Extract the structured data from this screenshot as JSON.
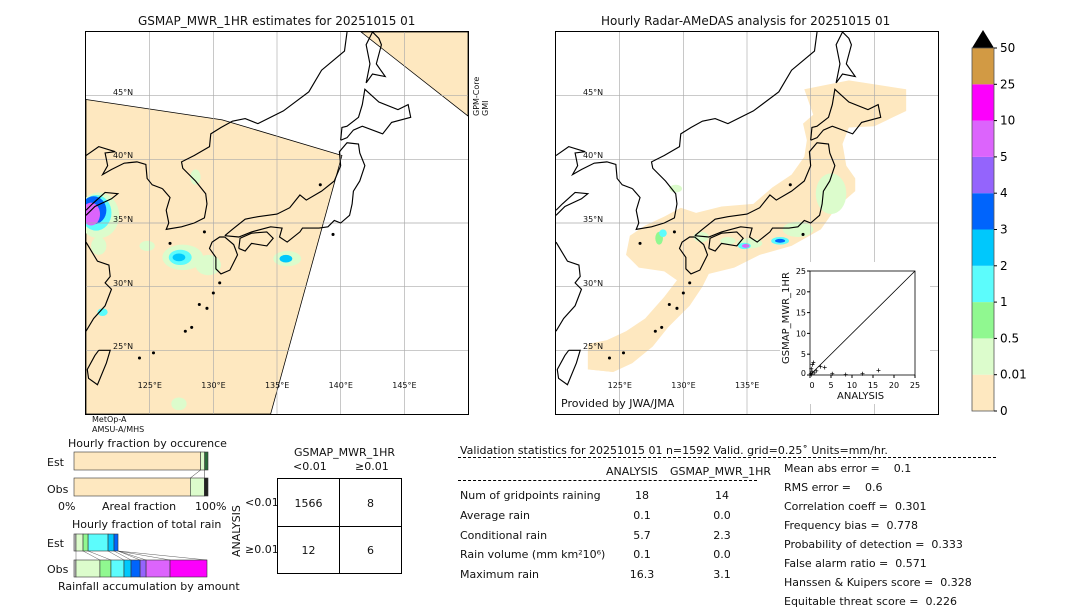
{
  "colors": {
    "scale": [
      "#fee8c0",
      "#dcfccc",
      "#90f890",
      "#5cfcfc",
      "#00c8fc",
      "#0064fc",
      "#9464fc",
      "#dc64fc",
      "#fc00fc",
      "#d29a44"
    ],
    "swath": "#fee8c0",
    "extend": "#000000"
  },
  "left_map": {
    "title": "GSMAP_MWR_1HR estimates for 20251015 01",
    "sensor_top_right": [
      "GPM-Core",
      "GMI"
    ],
    "sensor_bottom_left": [
      "MetOp-A",
      "AMSU-A/MHS"
    ]
  },
  "right_map": {
    "title": "Hourly Radar-AMeDAS analysis for 20251015 01",
    "credit": "Provided by JWA/JMA"
  },
  "map_axes": {
    "lat_labels": [
      "45°N",
      "40°N",
      "35°N",
      "30°N",
      "25°N"
    ],
    "lon_labels": [
      "125°E",
      "130°E",
      "135°E",
      "140°E",
      "145°E"
    ],
    "lat_values": [
      45,
      40,
      35,
      30,
      25
    ],
    "lon_values": [
      125,
      130,
      135,
      140,
      145
    ],
    "lon_range": [
      120,
      150
    ],
    "lat_range": [
      20,
      50
    ]
  },
  "colorbar": {
    "tick_labels": [
      "0",
      "0.01",
      "0.5",
      "1",
      "2",
      "3",
      "4",
      "5",
      "10",
      "25",
      "50"
    ],
    "units": "mm/hr"
  },
  "scatter": {
    "xlabel": "ANALYSIS",
    "ylabel": "GSMAP_MWR_1HR",
    "ticks": [
      "0",
      "5",
      "10",
      "15",
      "20",
      "25"
    ],
    "range": [
      0,
      25
    ]
  },
  "occurrence": {
    "title": "Hourly fraction by occurence",
    "rows": [
      "Est",
      "Obs"
    ],
    "xlabel_left": "0%",
    "xlabel_mid": "Areal fraction",
    "xlabel_right": "100%"
  },
  "total_rain": {
    "title": "Hourly fraction of total rain",
    "rows": [
      "Est",
      "Obs"
    ],
    "xlabel": "Rainfall accumulation by amount"
  },
  "contingency": {
    "col_header": "GSMAP_MWR_1HR",
    "col_labels": [
      "<0.01",
      "≥0.01"
    ],
    "row_header": "ANALYSIS",
    "row_labels": [
      "<0.01",
      "≥0.01"
    ],
    "cells": [
      [
        "1566",
        "8"
      ],
      [
        "12",
        "6"
      ]
    ]
  },
  "stats": {
    "title": "Validation statistics for 20251015 01  n=1592 Valid. grid=0.25˚ Units=mm/hr.",
    "col_headers": [
      "ANALYSIS",
      "GSMAP_MWR_1HR"
    ],
    "rows": [
      {
        "label": "Num of gridpoints raining",
        "analysis": "18",
        "gsmap": "14"
      },
      {
        "label": "Average rain",
        "analysis": "0.1",
        "gsmap": "0.0"
      },
      {
        "label": "Conditional rain",
        "analysis": "5.7",
        "gsmap": "2.3"
      },
      {
        "label": "Rain volume (mm km²10⁶)",
        "analysis": "0.1",
        "gsmap": "0.0"
      },
      {
        "label": "Maximum rain",
        "analysis": "16.3",
        "gsmap": "3.1"
      }
    ],
    "scores": [
      "Mean abs error =    0.1",
      "RMS error =    0.6",
      "Correlation coeff =  0.301",
      "Frequency bias =  0.778",
      "Probability of detection =  0.333",
      "False alarm ratio =  0.571",
      "Hanssen & Kuipers score =  0.328",
      "Equitable threat score =  0.226"
    ]
  },
  "chart_data": [
    {
      "type": "scatter",
      "xlabel": "ANALYSIS",
      "ylabel": "GSMAP_MWR_1HR",
      "xlim": [
        0,
        25
      ],
      "ylim": [
        0,
        25
      ],
      "one_to_one_line": true,
      "points": [
        [
          0.2,
          0.3
        ],
        [
          0.5,
          0.8
        ],
        [
          0.6,
          2.5
        ],
        [
          0.8,
          3.0
        ],
        [
          1.0,
          0.5
        ],
        [
          1.5,
          1.0
        ],
        [
          2.5,
          2.0
        ],
        [
          3.5,
          1.8
        ],
        [
          5.3,
          0.3
        ],
        [
          8.5,
          0.1
        ],
        [
          12.5,
          0.3
        ],
        [
          16.3,
          1.1
        ],
        [
          0.3,
          1.5
        ],
        [
          0.4,
          0.1
        ]
      ]
    },
    {
      "type": "bar",
      "title": "Hourly fraction by occurence",
      "categories": [
        "Est",
        "Obs"
      ],
      "stacked": true,
      "classes": [
        "<0.01",
        "0.01-0.5",
        "≥0.5"
      ],
      "series": [
        {
          "values": [
            0.945,
            0.868
          ]
        },
        {
          "values": [
            0.03,
            0.105
          ]
        },
        {
          "values": [
            0.025,
            0.027
          ]
        }
      ]
    },
    {
      "type": "bar",
      "title": "Hourly fraction of total rain",
      "categories": [
        "Est",
        "Obs"
      ],
      "stacked": true,
      "classes": [
        "0-0.01",
        "0.01-0.5",
        "0.5-1",
        "1-2",
        "2-3",
        "3-4",
        "4-5",
        "5-10",
        "10-25"
      ],
      "series_est": [
        0.015,
        0.053,
        0.038,
        0.15,
        0.045,
        0.03,
        0,
        0,
        0
      ],
      "series_obs": [
        0.015,
        0.18,
        0.083,
        0.098,
        0.053,
        0.068,
        0.045,
        0.18,
        0.278
      ]
    }
  ]
}
